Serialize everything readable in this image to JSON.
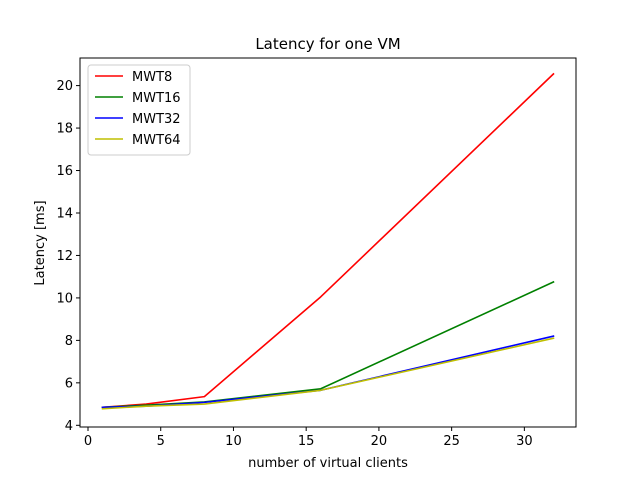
{
  "chart_data": {
    "type": "line",
    "title": "Latency for one VM",
    "xlabel": "number of virtual clients",
    "ylabel": "Latency [ms]",
    "xlim": [
      -0.55,
      33.55
    ],
    "ylim": [
      3.92,
      21.3
    ],
    "xticks": [
      0,
      5,
      10,
      15,
      20,
      25,
      30
    ],
    "yticks": [
      4,
      6,
      8,
      10,
      12,
      14,
      16,
      18,
      20
    ],
    "grid": false,
    "legend_position": "top-left",
    "x": [
      1,
      4,
      8,
      16,
      32
    ],
    "series": [
      {
        "name": "MWT8",
        "color": "#ff0000",
        "values": [
          4.85,
          5.0,
          5.35,
          10.05,
          20.55
        ]
      },
      {
        "name": "MWT16",
        "color": "#008000",
        "values": [
          4.85,
          4.95,
          5.1,
          5.72,
          10.75
        ]
      },
      {
        "name": "MWT32",
        "color": "#0000ff",
        "values": [
          4.85,
          4.9,
          5.08,
          5.65,
          8.2
        ]
      },
      {
        "name": "MWT64",
        "color": "#bfbf00",
        "values": [
          4.78,
          4.9,
          5.0,
          5.65,
          8.1
        ]
      }
    ]
  }
}
